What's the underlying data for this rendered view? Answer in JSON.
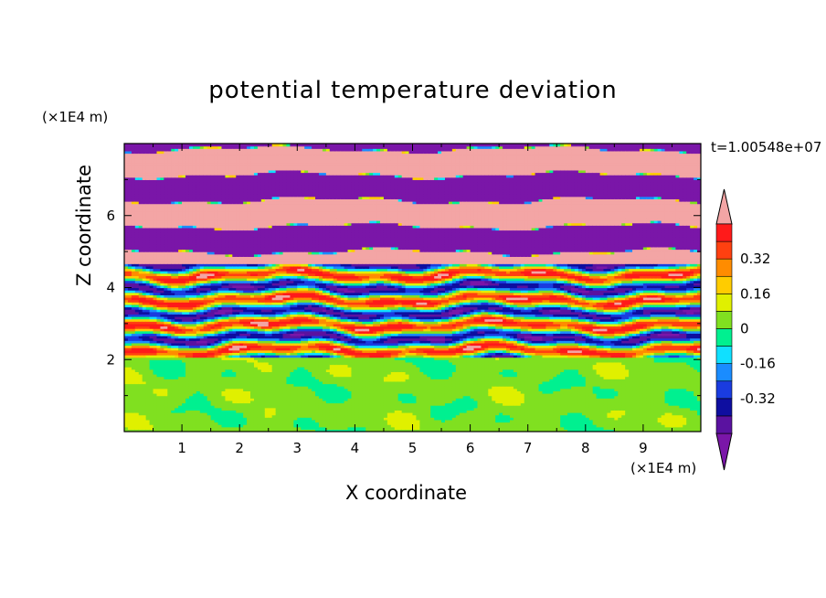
{
  "chart_data": {
    "type": "heatmap",
    "title": "potential temperature deviation",
    "xlabel": "X coordinate",
    "ylabel": "Z coordinate",
    "x_unit": "(×1E4 m)",
    "z_unit": "(×1E4 m)",
    "time_label": "t=1.00548e+07",
    "xlim": [
      0,
      10
    ],
    "ylim": [
      0,
      8
    ],
    "x_ticks": [
      "1",
      "2",
      "3",
      "4",
      "5",
      "6",
      "7",
      "8",
      "9"
    ],
    "y_ticks": [
      "2",
      "4",
      "6"
    ],
    "colorbar": {
      "levels": [
        -0.48,
        -0.4,
        -0.32,
        -0.24,
        -0.16,
        -0.08,
        0,
        0.08,
        0.16,
        0.24,
        0.32,
        0.4,
        0.48
      ],
      "tick_labels": [
        "0.32",
        "0.16",
        "0",
        "-0.16",
        "-0.32"
      ],
      "tick_values": [
        0.32,
        0.16,
        0,
        -0.16,
        -0.32
      ],
      "colors": {
        "below": "#7a16a8",
        "bands": [
          "#5a12a0",
          "#0e0ea0",
          "#1a3ce0",
          "#1a8cff",
          "#10e0ff",
          "#00f090",
          "#80e020",
          "#e0f000",
          "#ffcc00",
          "#ff8c00",
          "#ff4010",
          "#ff1a1a"
        ],
        "above": "#f3a5a5"
      },
      "extend": "both"
    },
    "layers": [
      {
        "z_from": 0.0,
        "z_to": 2.05,
        "pattern": "lower green boundary layer"
      },
      {
        "z_from": 2.05,
        "z_to": 4.7,
        "pattern": "multicolor layered turbulence"
      },
      {
        "z_from": 4.7,
        "z_to": 8.0,
        "pattern": "alternating pink and purple bands"
      }
    ]
  }
}
